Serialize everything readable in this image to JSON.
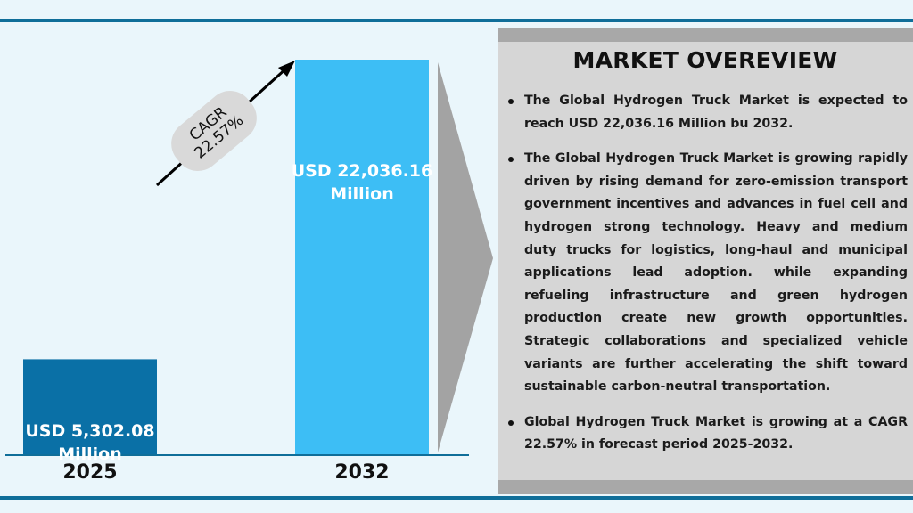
{
  "chart_data": {
    "type": "bar",
    "categories": [
      "2025",
      "2032"
    ],
    "values": [
      5302.08,
      22036.16
    ],
    "value_labels": [
      "USD 5,302.08\nMillion",
      "USD 22,036.16\nMillion"
    ],
    "bar_colors": [
      "#0a70a6",
      "#3dbef5"
    ],
    "annotation": {
      "line1": "CAGR",
      "line2": "22.57%"
    }
  },
  "overview": {
    "title": "MARKET OVEREVIEW",
    "bullets": [
      "The Global Hydrogen Truck Market is expected to reach USD 22,036.16 Million bu 2032.",
      "The Global Hydrogen Truck Market is growing rapidly driven by rising demand for zero-emission transport government incentives and advances in fuel cell and hydrogen strong technology. Heavy and medium duty trucks for logistics, long-haul and municipal applications lead adoption. while expanding refueling infrastructure and green hydrogen production create new growth opportunities. Strategic collaborations and specialized vehicle variants are further accelerating the shift toward sustainable carbon-neutral transportation.",
      "Global Hydrogen Truck Market is growing at a CAGR 22.57% in forecast period 2025-2032."
    ]
  },
  "colors": {
    "frame": "#0f6e99",
    "panel": "#d6d6d6",
    "panel_band": "#a8a8a8",
    "arrow": "#a3a3a3"
  }
}
